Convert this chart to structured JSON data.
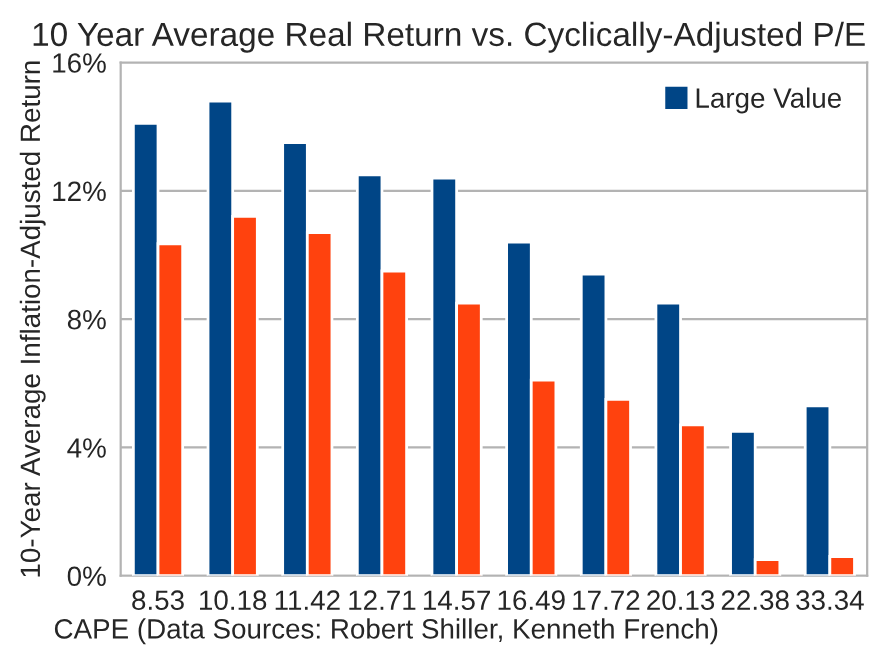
{
  "chart_data": {
    "type": "bar",
    "title": "10 Year Average Real Return vs. Cyclically-Adjusted P/E",
    "xlabel": "CAPE (Data Sources: Robert Shiller, Kenneth French)",
    "ylabel": "10-Year Average Inflation-Adjusted Return",
    "categories": [
      "8.53",
      "10.18",
      "11.42",
      "12.71",
      "14.57",
      "16.49",
      "17.72",
      "20.13",
      "22.38",
      "33.34"
    ],
    "series": [
      {
        "name": "Large Value",
        "color": "#004586",
        "values": [
          14.1,
          14.8,
          13.5,
          12.5,
          12.4,
          10.4,
          9.4,
          8.5,
          4.5,
          5.3
        ]
      },
      {
        "color": "#ff420e",
        "values": [
          10.35,
          11.2,
          10.7,
          9.5,
          8.5,
          6.1,
          5.5,
          4.7,
          0.5,
          0.6
        ]
      }
    ],
    "ylim": [
      0,
      16
    ],
    "yticks": [
      {
        "value": 0,
        "label": "0%"
      },
      {
        "value": 4,
        "label": "4%"
      },
      {
        "value": 8,
        "label": "8%"
      },
      {
        "value": 12,
        "label": "12%"
      },
      {
        "value": 16,
        "label": "16%"
      }
    ],
    "grid": "y",
    "legend": "top right"
  }
}
